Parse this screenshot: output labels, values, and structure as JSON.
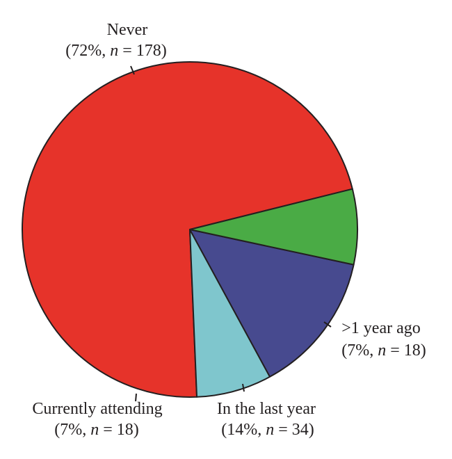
{
  "chart_data": {
    "type": "pie",
    "title": "",
    "slices": [
      {
        "label": "Never",
        "percent_text": "72%",
        "n": 178,
        "color": "#e6332a"
      },
      {
        "label": ">1 year ago",
        "percent_text": "7%",
        "n": 18,
        "color": "#7fc6cd"
      },
      {
        "label": "In the last year",
        "percent_text": "14%",
        "n": 34,
        "color": "#474a8f"
      },
      {
        "label": "Currently attending",
        "percent_text": "7%",
        "n": 18,
        "color": "#4aab45"
      }
    ],
    "n_symbol": "n",
    "equals": " = ",
    "start_angle_deg": 14,
    "direction": "counterclockwise",
    "outline_color": "#231f20"
  }
}
